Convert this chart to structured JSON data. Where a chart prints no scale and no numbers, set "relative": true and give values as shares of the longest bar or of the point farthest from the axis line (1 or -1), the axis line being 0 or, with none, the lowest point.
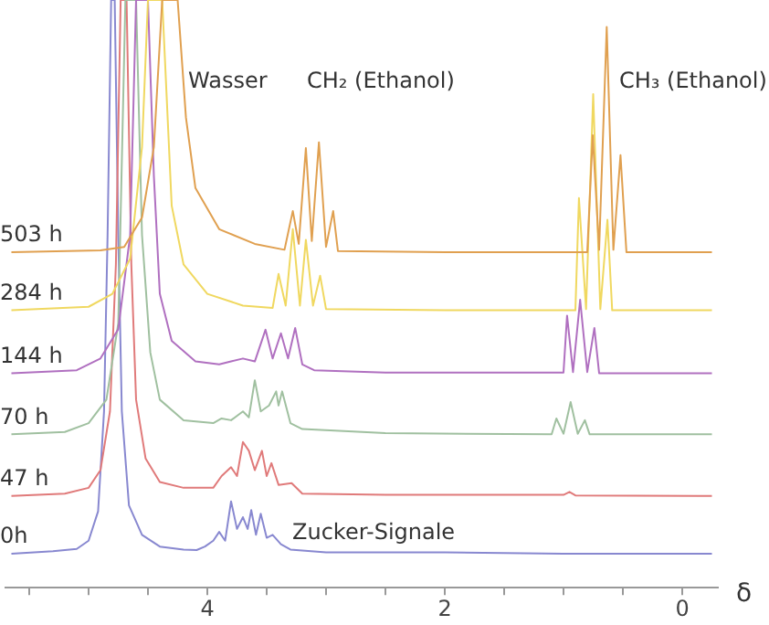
{
  "chart_data": {
    "type": "line",
    "relative": true,
    "xlabel": "δ",
    "xlim": [
      5.7,
      -0.3
    ],
    "xticks": [
      {
        "value": 5.5,
        "label": null
      },
      {
        "value": 5,
        "label": null
      },
      {
        "value": 4.5,
        "label": null
      },
      4,
      {
        "value": 3.5,
        "label": null
      },
      {
        "value": 3,
        "label": null
      },
      {
        "value": 2.5,
        "label": null
      },
      2,
      {
        "value": 1.5,
        "label": null
      },
      {
        "value": 1,
        "label": null
      },
      {
        "value": 0.5,
        "label": null
      },
      0
    ],
    "tick_labels": "x",
    "grid": false,
    "legend": false,
    "marker": "none",
    "annotations": [
      "Wasser",
      "CH₂ (Ethanol)",
      "CH₃ (Ethanol)",
      "Zucker-Signale"
    ],
    "series": [
      {
        "name": "503 h",
        "color": "#e0a050",
        "x": [
          5.65,
          4.9,
          4.7,
          4.55,
          4.45,
          4.38,
          4.25,
          4.18,
          4.1,
          3.9,
          3.6,
          3.35,
          3.28,
          3.23,
          3.17,
          3.12,
          3.06,
          3.0,
          2.94,
          2.9,
          2.0,
          0.8,
          0.754,
          0.7,
          0.636,
          0.58,
          0.52,
          0.47,
          -0.25
        ],
        "values": [
          0.571,
          0.574,
          0.58,
          0.63,
          0.75,
          1,
          1,
          0.8,
          0.68,
          0.61,
          0.585,
          0.575,
          0.641,
          0.585,
          0.748,
          0.59,
          0.758,
          0.58,
          0.641,
          0.573,
          0.571,
          0.571,
          0.77,
          0.575,
          0.954,
          0.575,
          0.736,
          0.571,
          0.571
        ]
      },
      {
        "name": "284 h",
        "color": "#f0d860",
        "x": [
          5.65,
          5.0,
          4.8,
          4.65,
          4.55,
          4.5,
          4.38,
          4.3,
          4.2,
          4.0,
          3.7,
          3.45,
          3.4,
          3.34,
          3.28,
          3.22,
          3.17,
          3.11,
          3.05,
          3.0,
          2.0,
          0.9,
          0.87,
          0.81,
          0.75,
          0.69,
          0.63,
          0.59,
          -0.25
        ],
        "values": [
          0.472,
          0.478,
          0.5,
          0.56,
          0.75,
          1,
          1,
          0.65,
          0.55,
          0.5,
          0.48,
          0.476,
          0.534,
          0.48,
          0.61,
          0.48,
          0.592,
          0.48,
          0.531,
          0.474,
          0.472,
          0.472,
          0.663,
          0.474,
          0.84,
          0.474,
          0.626,
          0.472,
          0.472
        ]
      },
      {
        "name": "144 h",
        "color": "#b070c0",
        "x": [
          5.65,
          5.1,
          4.9,
          4.75,
          4.65,
          4.6,
          4.5,
          4.45,
          4.4,
          4.3,
          4.1,
          3.9,
          3.8,
          3.7,
          3.6,
          3.51,
          3.45,
          3.38,
          3.32,
          3.26,
          3.2,
          3.1,
          2.5,
          1.0,
          0.97,
          0.92,
          0.86,
          0.8,
          0.74,
          0.7,
          -0.25
        ],
        "values": [
          0.365,
          0.37,
          0.39,
          0.44,
          0.6,
          1,
          1,
          0.7,
          0.5,
          0.42,
          0.385,
          0.38,
          0.385,
          0.39,
          0.385,
          0.439,
          0.39,
          0.433,
          0.39,
          0.442,
          0.38,
          0.37,
          0.366,
          0.366,
          0.463,
          0.367,
          0.49,
          0.367,
          0.442,
          0.365,
          0.365
        ]
      },
      {
        "name": "70 h",
        "color": "#a0c0a0",
        "x": [
          5.65,
          5.2,
          5.0,
          4.85,
          4.75,
          4.69,
          4.6,
          4.55,
          4.48,
          4.4,
          4.2,
          3.95,
          3.88,
          3.8,
          3.7,
          3.65,
          3.6,
          3.55,
          3.48,
          3.42,
          3.4,
          3.37,
          3.3,
          3.2,
          2.5,
          1.1,
          1.06,
          1.0,
          0.94,
          0.88,
          0.82,
          0.78,
          -0.25
        ],
        "values": [
          0.261,
          0.265,
          0.28,
          0.32,
          0.45,
          1,
          1,
          0.6,
          0.4,
          0.32,
          0.285,
          0.28,
          0.288,
          0.285,
          0.3,
          0.29,
          0.353,
          0.3,
          0.31,
          0.334,
          0.31,
          0.334,
          0.28,
          0.27,
          0.263,
          0.261,
          0.288,
          0.262,
          0.316,
          0.262,
          0.285,
          0.261,
          0.261
        ]
      },
      {
        "name": "47 h",
        "color": "#e07a7a",
        "x": [
          5.65,
          5.2,
          5.0,
          4.9,
          4.82,
          4.77,
          4.73,
          4.68,
          4.64,
          4.6,
          4.52,
          4.4,
          4.2,
          3.95,
          3.88,
          3.8,
          3.75,
          3.7,
          3.65,
          3.6,
          3.54,
          3.5,
          3.46,
          3.4,
          3.29,
          3.2,
          2.5,
          1.0,
          0.95,
          0.9,
          -0.25
        ],
        "values": [
          0.156,
          0.16,
          0.17,
          0.2,
          0.3,
          0.55,
          1,
          1,
          0.55,
          0.32,
          0.22,
          0.18,
          0.17,
          0.17,
          0.19,
          0.205,
          0.19,
          0.248,
          0.233,
          0.2,
          0.233,
          0.19,
          0.212,
          0.175,
          0.178,
          0.16,
          0.158,
          0.158,
          0.163,
          0.157,
          0.156
        ]
      },
      {
        "name": "0h",
        "color": "#8888d0",
        "x": [
          5.65,
          5.3,
          5.1,
          5.0,
          4.92,
          4.87,
          4.84,
          4.81,
          4.78,
          4.75,
          4.72,
          4.66,
          4.55,
          4.4,
          4.2,
          4.09,
          4.02,
          3.95,
          3.9,
          3.85,
          3.8,
          3.75,
          3.7,
          3.66,
          3.63,
          3.59,
          3.55,
          3.5,
          3.45,
          3.38,
          3.3,
          3.0,
          2.0,
          1.0,
          -0.25
        ],
        "values": [
          0.058,
          0.062,
          0.066,
          0.08,
          0.13,
          0.3,
          0.6,
          1,
          1,
          0.6,
          0.3,
          0.14,
          0.09,
          0.07,
          0.065,
          0.064,
          0.07,
          0.08,
          0.095,
          0.08,
          0.147,
          0.1,
          0.12,
          0.1,
          0.132,
          0.09,
          0.126,
          0.085,
          0.09,
          0.074,
          0.065,
          0.06,
          0.06,
          0.058,
          0.058
        ]
      }
    ]
  }
}
